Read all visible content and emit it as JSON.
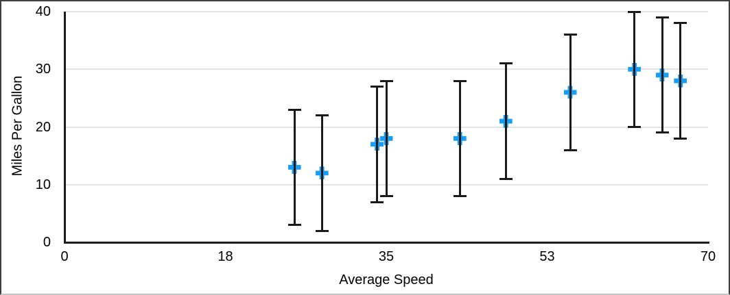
{
  "chart_data": {
    "type": "scatter",
    "title": "",
    "xlabel": "Average Speed",
    "ylabel": "Miles Per Gallon",
    "xlim": [
      0,
      70
    ],
    "ylim": [
      0,
      40
    ],
    "x_ticks": [
      {
        "value": 0,
        "label": "0"
      },
      {
        "value": 17.5,
        "label": "18"
      },
      {
        "value": 35,
        "label": "35"
      },
      {
        "value": 52.5,
        "label": "53"
      },
      {
        "value": 70,
        "label": "70"
      }
    ],
    "y_ticks": [
      {
        "value": 0,
        "label": "0"
      },
      {
        "value": 10,
        "label": "10"
      },
      {
        "value": 20,
        "label": "20"
      },
      {
        "value": 30,
        "label": "30"
      },
      {
        "value": 40,
        "label": "40"
      }
    ],
    "grid": "horizontal",
    "legend_position": "none",
    "marker_shape": "plus",
    "colors": {
      "marker": "#189DF2",
      "error_bar": "#1a1a1a",
      "axis_line": "#1a1a1a",
      "gridline": "#e3e3e3",
      "text": "#000000",
      "background": "#ffffff"
    },
    "error_bars": {
      "type": "symmetric",
      "value": 10
    },
    "points": [
      {
        "x": 25,
        "y": 13,
        "err": 10
      },
      {
        "x": 28,
        "y": 12,
        "err": 10
      },
      {
        "x": 34,
        "y": 17,
        "err": 10
      },
      {
        "x": 35,
        "y": 18,
        "err": 10
      },
      {
        "x": 43,
        "y": 18,
        "err": 10
      },
      {
        "x": 48,
        "y": 21,
        "err": 10
      },
      {
        "x": 55,
        "y": 26,
        "err": 10
      },
      {
        "x": 62,
        "y": 30,
        "err": 10
      },
      {
        "x": 65,
        "y": 29,
        "err": 10
      },
      {
        "x": 67,
        "y": 28,
        "err": 10
      }
    ]
  }
}
